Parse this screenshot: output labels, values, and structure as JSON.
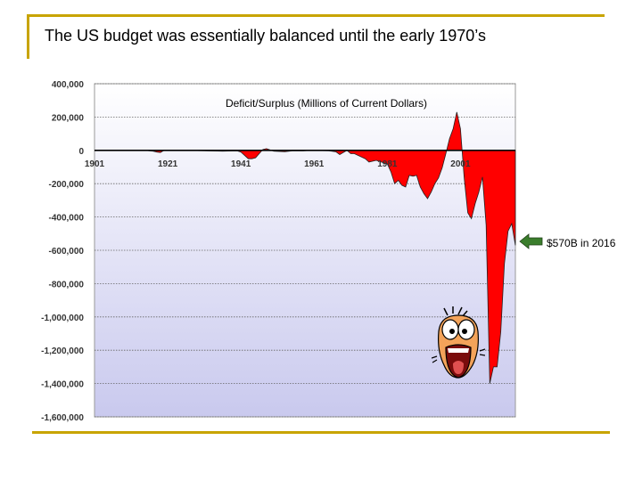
{
  "slide": {
    "title": "The US budget was essentially balanced until the early 1970’s"
  },
  "annotation": {
    "label": "$570B in 2016",
    "arrow_color": "#3a7d2c"
  },
  "mascot": {
    "icon": "screaming-cartoon-face-icon"
  },
  "colors": {
    "area_fill": "#ff0000",
    "plot_bg_top": "#ffffff",
    "plot_bg_bottom": "#c9c9ee",
    "frame_accent": "#c8a400"
  },
  "chart_data": {
    "type": "area",
    "title": "Deficit/Surplus (Millions of Current Dollars)",
    "xlabel": "",
    "ylabel": "",
    "xlim": [
      1901,
      2016
    ],
    "ylim": [
      -1600000,
      400000
    ],
    "yticks": [
      400000,
      200000,
      0,
      -200000,
      -400000,
      -600000,
      -800000,
      -1000000,
      -1200000,
      -1400000,
      -1600000
    ],
    "ytick_labels": [
      "400,000",
      "200,000",
      "0",
      "-200,000",
      "-400,000",
      "-600,000",
      "-800,000",
      "-1,000,000",
      "-1,200,000",
      "-1,400,000",
      "-1,600,000"
    ],
    "xticks": [
      1901,
      1921,
      1941,
      1961,
      1981,
      2001
    ],
    "xtick_labels": [
      "1901",
      "1921",
      "1941",
      "1961",
      "1981",
      "2001"
    ],
    "grid": "horizontal dotted",
    "series": [
      {
        "x": [
          1901,
          1915,
          1917,
          1918,
          1919,
          1920,
          1925,
          1931,
          1932,
          1936,
          1940,
          1941,
          1942,
          1943,
          1944,
          1945,
          1946,
          1947,
          1948,
          1950,
          1953,
          1955,
          1958,
          1960,
          1965,
          1967,
          1968,
          1970,
          1971,
          1972,
          1975,
          1976,
          1978,
          1980,
          1981,
          1982,
          1983,
          1984,
          1985,
          1986,
          1987,
          1988,
          1989,
          1990,
          1991,
          1992,
          1993,
          1994,
          1995,
          1996,
          1997,
          1998,
          1999,
          2000,
          2001,
          2002,
          2003,
          2004,
          2005,
          2006,
          2007,
          2008,
          2009,
          2010,
          2011,
          2012,
          2013,
          2014,
          2015,
          2016
        ],
        "values": [
          0,
          0,
          -5000,
          -10000,
          -13000,
          0,
          0,
          -2000,
          -3000,
          -5000,
          -3000,
          -10000,
          -30000,
          -50000,
          -50000,
          -45000,
          -20000,
          5000,
          10000,
          -5000,
          -8000,
          -3000,
          -3000,
          0,
          -2000,
          -9000,
          -25000,
          0,
          -20000,
          -20000,
          -50000,
          -70000,
          -60000,
          -75000,
          -80000,
          -130000,
          -200000,
          -180000,
          -210000,
          -220000,
          -150000,
          -155000,
          -150000,
          -220000,
          -260000,
          -290000,
          -250000,
          -200000,
          -165000,
          -105000,
          -20000,
          70000,
          130000,
          230000,
          130000,
          -160000,
          -375000,
          -410000,
          -320000,
          -250000,
          -160000,
          -450000,
          -1400000,
          -1300000,
          -1300000,
          -1090000,
          -680000,
          -485000,
          -440000,
          -570000
        ]
      }
    ],
    "annotations": [
      "$570B in 2016"
    ]
  }
}
